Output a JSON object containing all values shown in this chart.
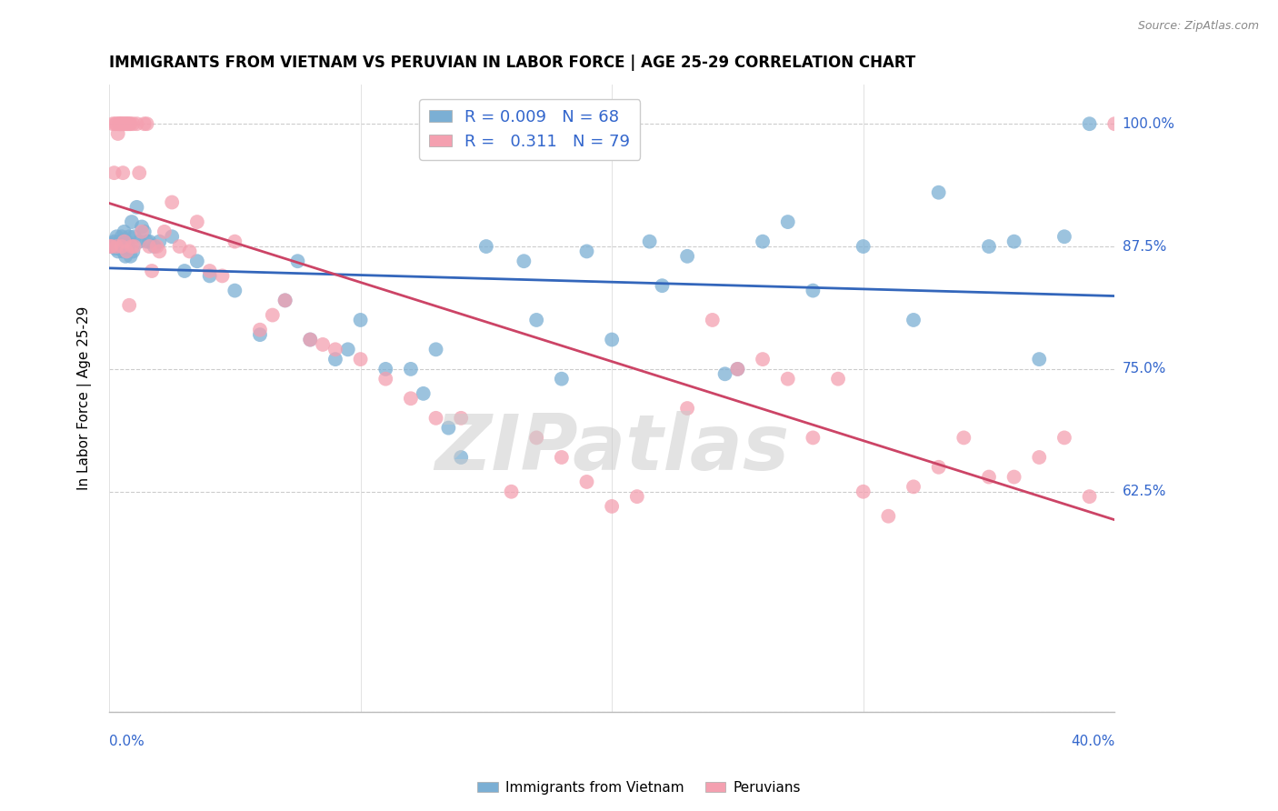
{
  "title": "IMMIGRANTS FROM VIETNAM VS PERUVIAN IN LABOR FORCE | AGE 25-29 CORRELATION CHART",
  "source": "Source: ZipAtlas.com",
  "ylabel": "In Labor Force | Age 25-29",
  "yticks": [
    40.0,
    62.5,
    75.0,
    87.5,
    100.0
  ],
  "ytick_labels": [
    "",
    "62.5%",
    "75.0%",
    "87.5%",
    "100.0%"
  ],
  "xticks": [
    0.0,
    10.0,
    20.0,
    30.0,
    40.0
  ],
  "xlim": [
    0.0,
    40.0
  ],
  "ylim": [
    40.0,
    104.0
  ],
  "legend_r_vietnam": "0.009",
  "legend_n_vietnam": "68",
  "legend_r_peru": "0.311",
  "legend_n_peru": "79",
  "blue_color": "#7BAFD4",
  "pink_color": "#F4A0B0",
  "trendline_blue": "#3366BB",
  "trendline_pink": "#CC4466",
  "watermark": "ZIPatlas",
  "vietnam_x": [
    0.05,
    0.1,
    0.15,
    0.2,
    0.25,
    0.3,
    0.35,
    0.4,
    0.45,
    0.5,
    0.55,
    0.6,
    0.65,
    0.7,
    0.75,
    0.8,
    0.85,
    0.9,
    0.95,
    1.0,
    1.1,
    1.2,
    1.3,
    1.5,
    1.8,
    2.0,
    2.5,
    3.0,
    3.5,
    4.0,
    5.0,
    6.0,
    7.0,
    8.0,
    9.0,
    10.0,
    11.0,
    12.0,
    13.0,
    14.0,
    15.0,
    16.5,
    18.0,
    19.0,
    20.0,
    21.5,
    23.0,
    24.5,
    26.0,
    27.0,
    30.0,
    33.0,
    35.0,
    37.0,
    38.0,
    39.0,
    7.5,
    9.5,
    12.5,
    13.5,
    17.0,
    22.0,
    25.0,
    28.0,
    32.0,
    36.0,
    1.6,
    1.4
  ],
  "vietnam_y": [
    87.5,
    87.5,
    87.8,
    88.0,
    87.3,
    88.5,
    87.0,
    87.5,
    88.0,
    88.5,
    87.0,
    89.0,
    86.5,
    88.0,
    87.5,
    88.5,
    86.5,
    90.0,
    87.0,
    88.5,
    91.5,
    88.0,
    89.5,
    88.0,
    87.5,
    88.0,
    88.5,
    85.0,
    86.0,
    84.5,
    83.0,
    78.5,
    82.0,
    78.0,
    76.0,
    80.0,
    75.0,
    75.0,
    77.0,
    66.0,
    87.5,
    86.0,
    74.0,
    87.0,
    78.0,
    88.0,
    86.5,
    74.5,
    88.0,
    90.0,
    87.5,
    93.0,
    87.5,
    76.0,
    88.5,
    100.0,
    86.0,
    77.0,
    72.5,
    69.0,
    80.0,
    83.5,
    75.0,
    83.0,
    80.0,
    88.0,
    88.0,
    89.0
  ],
  "peru_x": [
    0.05,
    0.1,
    0.15,
    0.2,
    0.25,
    0.3,
    0.35,
    0.4,
    0.45,
    0.5,
    0.55,
    0.6,
    0.65,
    0.7,
    0.75,
    0.8,
    0.85,
    0.9,
    0.95,
    1.0,
    1.1,
    1.2,
    1.3,
    1.5,
    1.7,
    1.9,
    2.2,
    2.5,
    2.8,
    3.2,
    3.5,
    4.0,
    5.0,
    6.0,
    7.0,
    8.0,
    9.0,
    10.0,
    11.0,
    12.0,
    14.0,
    16.0,
    17.0,
    18.0,
    19.0,
    20.0,
    21.0,
    23.0,
    25.0,
    27.0,
    30.0,
    33.0,
    34.0,
    36.0,
    38.0,
    0.3,
    0.5,
    0.55,
    0.7,
    0.4,
    4.5,
    6.5,
    8.5,
    13.0,
    24.0,
    29.0,
    31.0,
    35.0,
    37.0,
    39.0,
    40.0,
    1.4,
    1.6,
    2.0,
    26.0,
    28.0,
    32.0,
    0.6,
    0.8
  ],
  "peru_y": [
    87.5,
    87.5,
    100.0,
    95.0,
    100.0,
    100.0,
    99.0,
    100.0,
    100.0,
    100.0,
    100.0,
    100.0,
    100.0,
    100.0,
    100.0,
    100.0,
    100.0,
    87.5,
    100.0,
    87.5,
    100.0,
    95.0,
    89.0,
    100.0,
    85.0,
    87.5,
    89.0,
    92.0,
    87.5,
    87.0,
    90.0,
    85.0,
    88.0,
    79.0,
    82.0,
    78.0,
    77.0,
    76.0,
    74.0,
    72.0,
    70.0,
    62.5,
    68.0,
    66.0,
    63.5,
    61.0,
    62.0,
    71.0,
    75.0,
    74.0,
    62.5,
    65.0,
    68.0,
    64.0,
    68.0,
    87.5,
    87.5,
    95.0,
    87.0,
    100.0,
    84.5,
    80.5,
    77.5,
    70.0,
    80.0,
    74.0,
    60.0,
    64.0,
    66.0,
    62.0,
    100.0,
    100.0,
    87.5,
    87.0,
    76.0,
    68.0,
    63.0,
    88.0,
    81.5
  ]
}
